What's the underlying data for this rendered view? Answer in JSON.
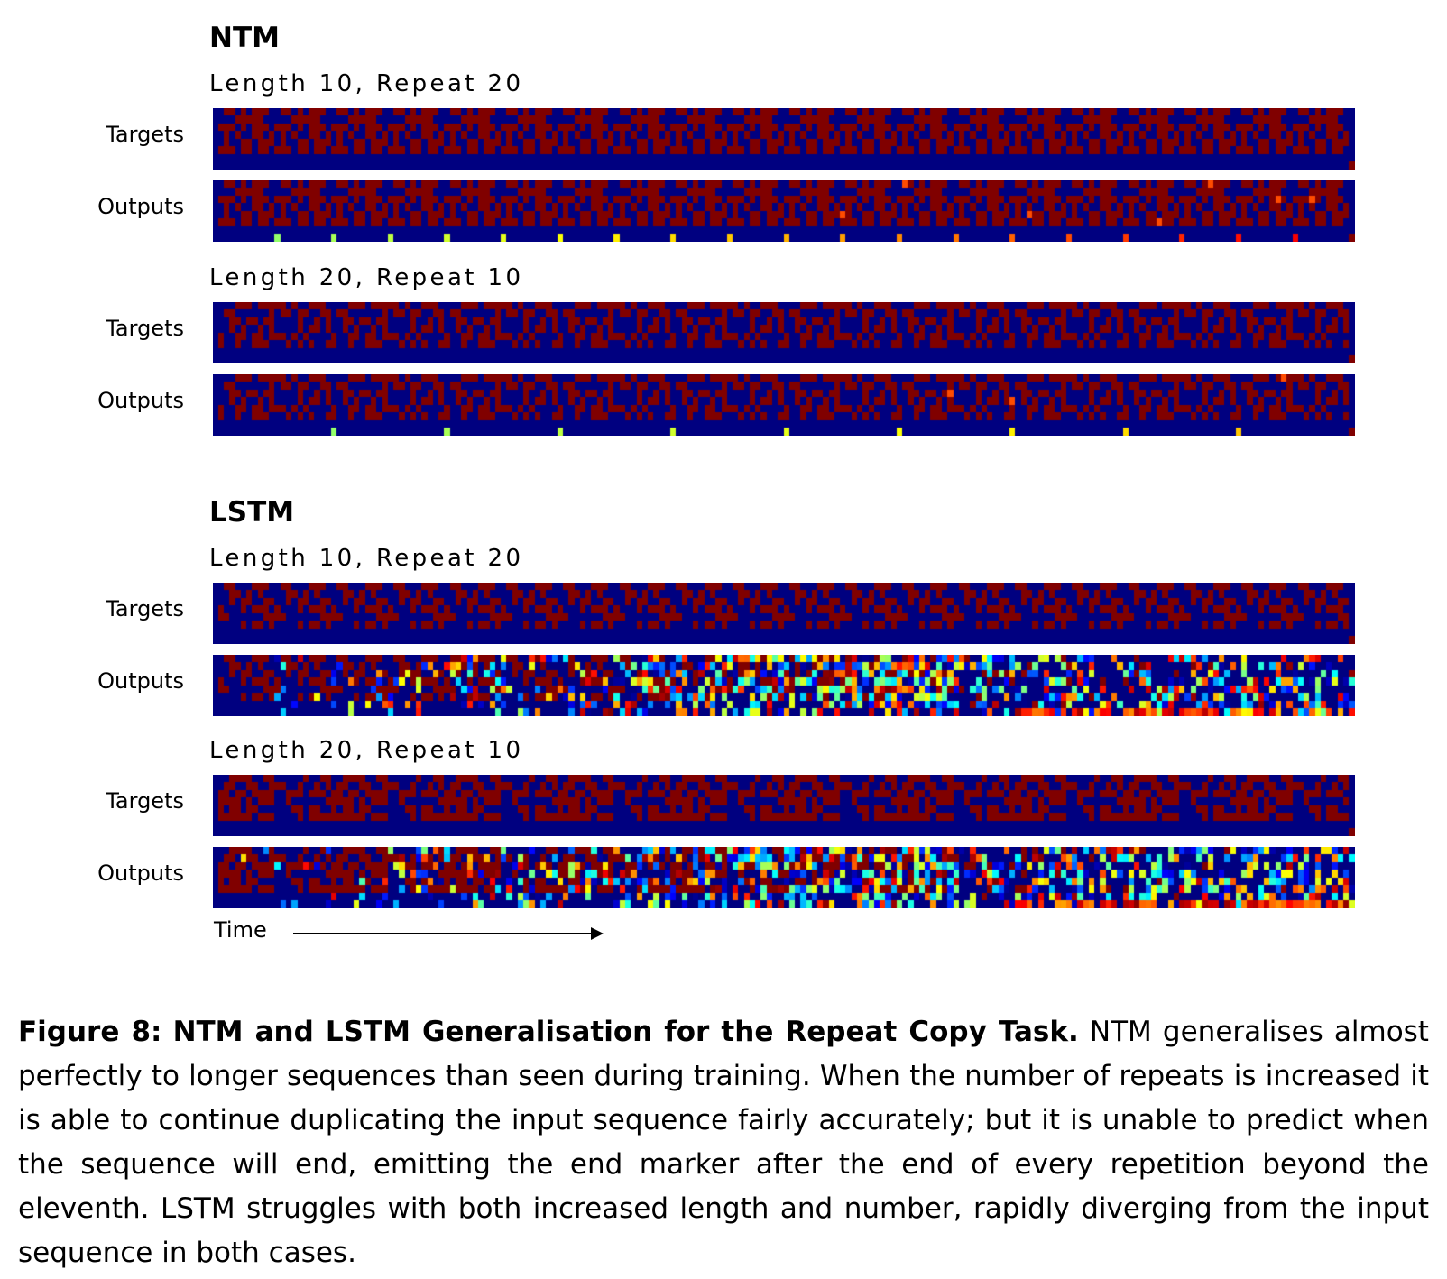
{
  "figure": {
    "time_label": "Time",
    "sections": [
      {
        "title": "NTM",
        "experiments": [
          {
            "subtitle": "Length 10, Repeat 20",
            "rows": [
              {
                "label": "Targets",
                "kind": "targets",
                "seq_len": 10,
                "repeats": 20,
                "behavior": "exact"
              },
              {
                "label": "Outputs",
                "kind": "outputs",
                "seq_len": 10,
                "repeats": 20,
                "behavior": "ntm_good"
              }
            ]
          },
          {
            "subtitle": "Length 20, Repeat 10",
            "rows": [
              {
                "label": "Targets",
                "kind": "targets",
                "seq_len": 20,
                "repeats": 10,
                "behavior": "exact"
              },
              {
                "label": "Outputs",
                "kind": "outputs",
                "seq_len": 20,
                "repeats": 10,
                "behavior": "ntm_good"
              }
            ]
          }
        ]
      },
      {
        "title": "LSTM",
        "experiments": [
          {
            "subtitle": "Length 10, Repeat 20",
            "rows": [
              {
                "label": "Targets",
                "kind": "targets",
                "seq_len": 10,
                "repeats": 20,
                "behavior": "exact"
              },
              {
                "label": "Outputs",
                "kind": "outputs",
                "seq_len": 10,
                "repeats": 20,
                "behavior": "lstm_diverge"
              }
            ]
          },
          {
            "subtitle": "Length 20, Repeat 10",
            "rows": [
              {
                "label": "Targets",
                "kind": "targets",
                "seq_len": 20,
                "repeats": 10,
                "behavior": "exact"
              },
              {
                "label": "Outputs",
                "kind": "outputs",
                "seq_len": 20,
                "repeats": 10,
                "behavior": "lstm_diverge"
              }
            ]
          }
        ]
      }
    ],
    "colormap": "jet"
  },
  "caption": {
    "label": "Figure 8:",
    "title": "NTM and LSTM Generalisation for the Repeat Copy Task.",
    "text": "NTM generalises almost perfectly to longer sequences than seen during training. When the number of repeats is increased it is able to continue duplicating the input sequence fairly accurately; but it is unable to predict when the sequence will end, emitting the end marker after the end of every repetition beyond the eleventh. LSTM struggles with both increased length and number, rapidly diverging from the input sequence in both cases."
  }
}
